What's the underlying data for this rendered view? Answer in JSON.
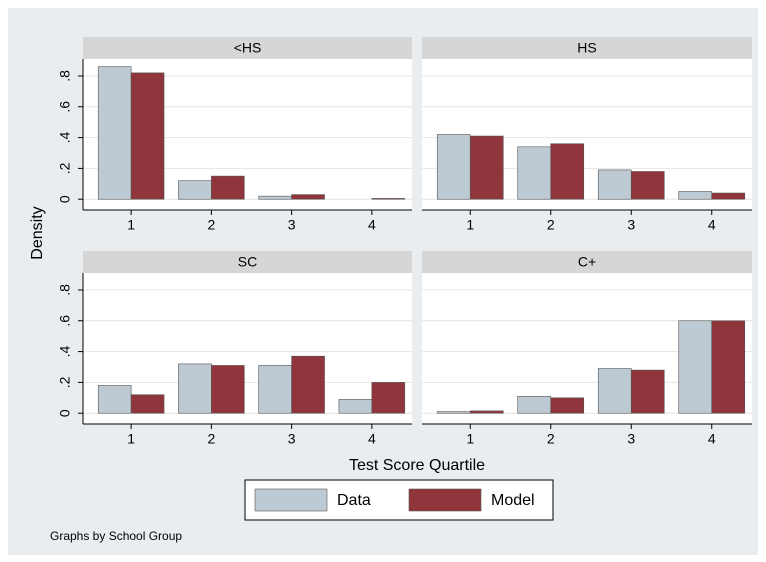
{
  "figure": {
    "y_label": "Density",
    "x_label": "Test Score Quartile",
    "note": "Graphs by School Group"
  },
  "chart_data": [
    {
      "type": "bar",
      "title": "<HS",
      "categories": [
        "1",
        "2",
        "3",
        "4"
      ],
      "series": [
        {
          "name": "Data",
          "color": "#bdc9d3",
          "values": [
            0.86,
            0.12,
            0.02,
            0
          ]
        },
        {
          "name": "Model",
          "color": "#90353b",
          "values": [
            0.82,
            0.15,
            0.03,
            0.005
          ]
        }
      ],
      "ylim": [
        -0.07,
        0.91
      ],
      "yticks": [
        0,
        {
          "value": 0.2,
          "label": ".2"
        },
        {
          "value": 0.4,
          "label": ".4"
        },
        {
          "value": 0.6,
          "label": ".6"
        },
        {
          "value": 0.8,
          "label": ".8"
        }
      ],
      "grid": true
    },
    {
      "type": "bar",
      "title": "HS",
      "categories": [
        "1",
        "2",
        "3",
        "4"
      ],
      "series": [
        {
          "name": "Data",
          "color": "#bdc9d3",
          "values": [
            0.42,
            0.34,
            0.19,
            0.05
          ]
        },
        {
          "name": "Model",
          "color": "#90353b",
          "values": [
            0.41,
            0.36,
            0.18,
            0.04
          ]
        }
      ],
      "ylim": [
        -0.07,
        0.91
      ],
      "yticks": [
        0,
        {
          "value": 0.2,
          "label": ".2"
        },
        {
          "value": 0.4,
          "label": ".4"
        },
        {
          "value": 0.6,
          "label": ".6"
        },
        {
          "value": 0.8,
          "label": ".8"
        }
      ],
      "grid": true
    },
    {
      "type": "bar",
      "title": "SC",
      "categories": [
        "1",
        "2",
        "3",
        "4"
      ],
      "series": [
        {
          "name": "Data",
          "color": "#bdc9d3",
          "values": [
            0.18,
            0.32,
            0.31,
            0.09
          ]
        },
        {
          "name": "Model",
          "color": "#90353b",
          "values": [
            0.12,
            0.31,
            0.37,
            0.2
          ]
        }
      ],
      "ylim": [
        -0.07,
        0.91
      ],
      "yticks": [
        0,
        {
          "value": 0.2,
          "label": ".2"
        },
        {
          "value": 0.4,
          "label": ".4"
        },
        {
          "value": 0.6,
          "label": ".6"
        },
        {
          "value": 0.8,
          "label": ".8"
        }
      ],
      "grid": true
    },
    {
      "type": "bar",
      "title": "C+",
      "categories": [
        "1",
        "2",
        "3",
        "4"
      ],
      "series": [
        {
          "name": "Data",
          "color": "#bdc9d3",
          "values": [
            0.01,
            0.11,
            0.29,
            0.6
          ]
        },
        {
          "name": "Model",
          "color": "#90353b",
          "values": [
            0.015,
            0.1,
            0.28,
            0.6
          ]
        }
      ],
      "ylim": [
        -0.07,
        0.91
      ],
      "yticks": [
        0,
        {
          "value": 0.2,
          "label": ".2"
        },
        {
          "value": 0.4,
          "label": ".4"
        },
        {
          "value": 0.6,
          "label": ".6"
        },
        {
          "value": 0.8,
          "label": ".8"
        }
      ],
      "grid": true
    }
  ]
}
